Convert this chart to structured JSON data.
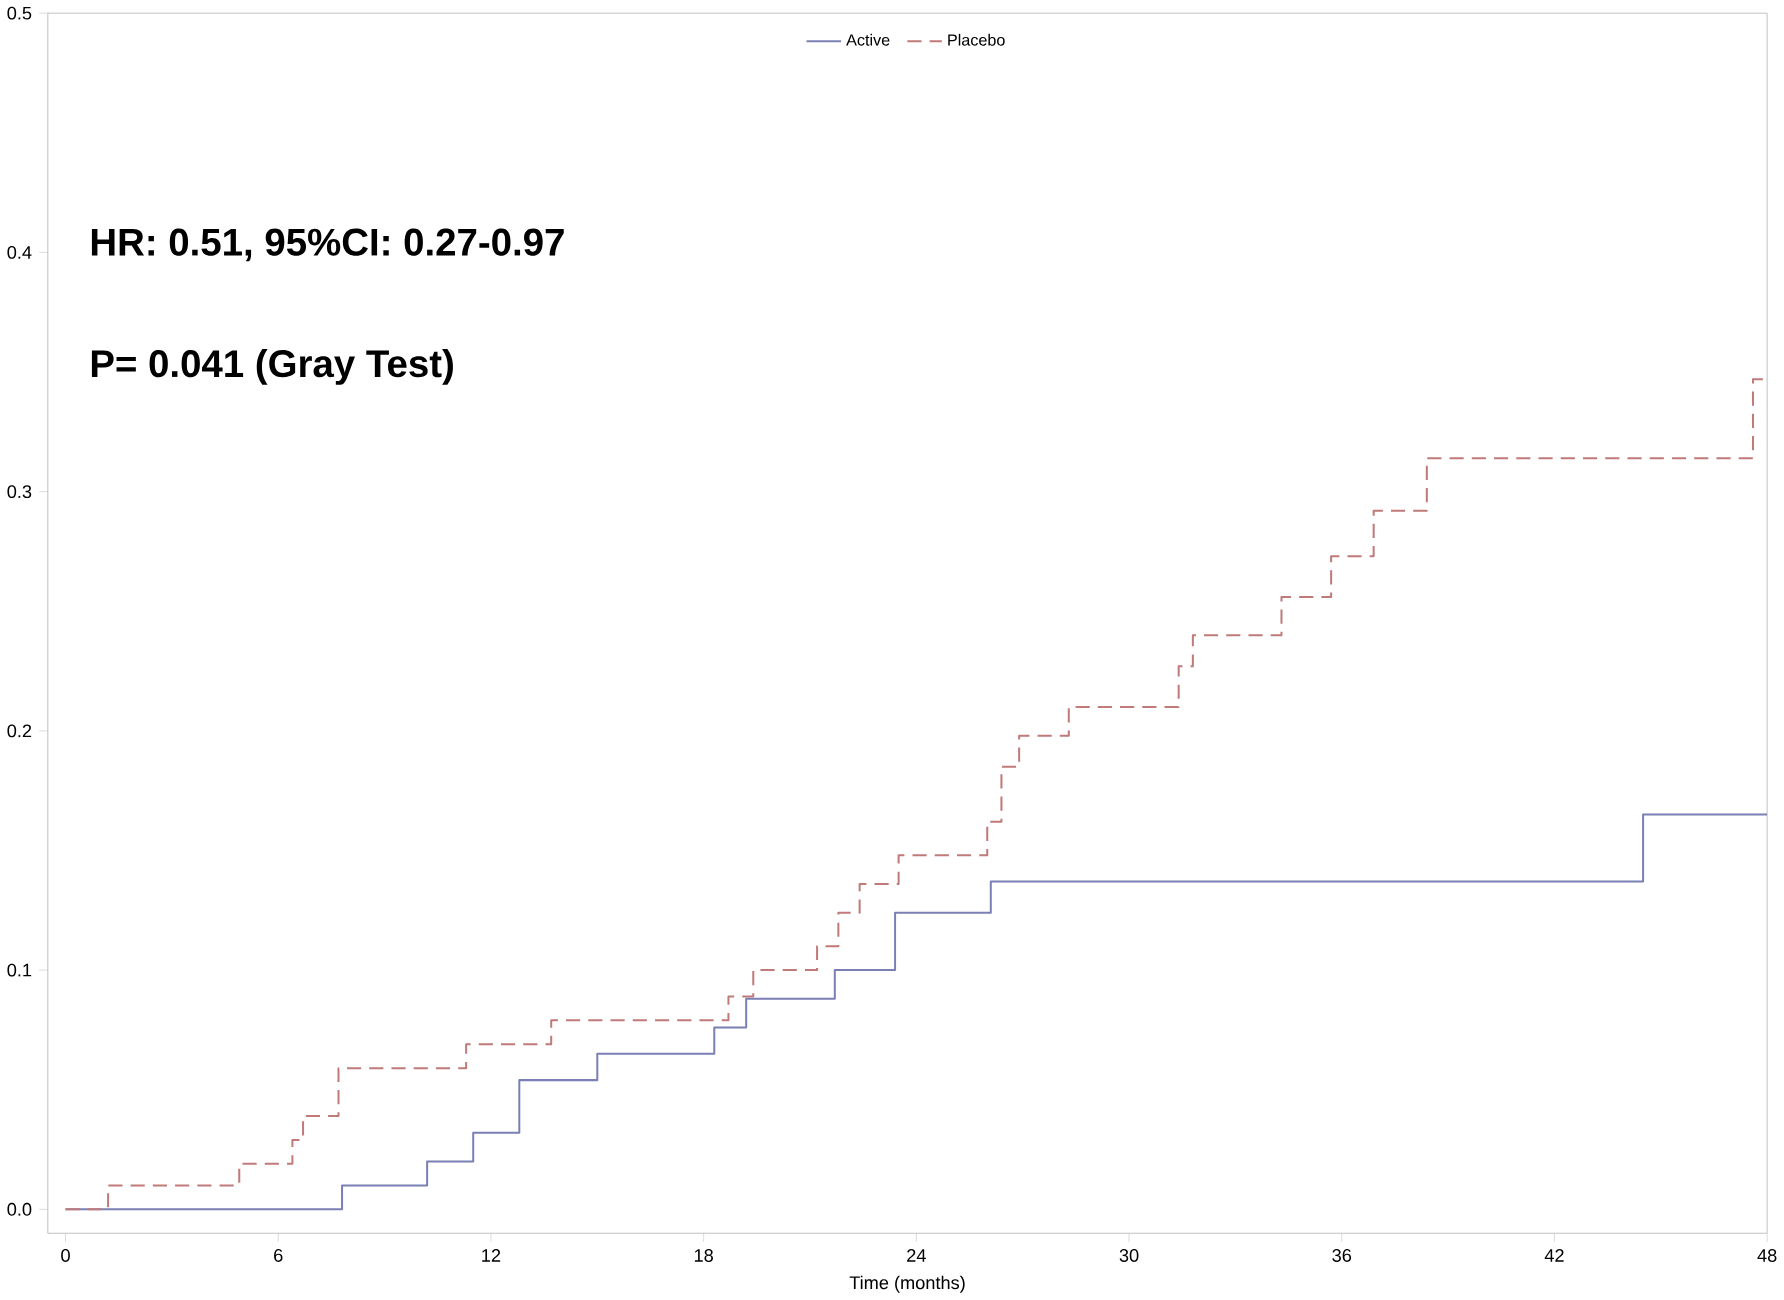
{
  "chart_data": {
    "type": "step",
    "xlabel": "Time (months)",
    "annotations": [
      "HR: 0.51, 95%CI: 0.27-0.97",
      "P= 0.041 (Gray Test)"
    ],
    "xlim": [
      -0.5,
      48
    ],
    "ylim": [
      -0.01,
      0.5
    ],
    "xticks": [
      0,
      6,
      12,
      18,
      24,
      30,
      36,
      42,
      48
    ],
    "yticks": [
      {
        "value": 0,
        "label": "0.0"
      },
      0.1,
      0.2,
      0.3,
      0.4,
      0.5
    ],
    "legend": "top",
    "grid": false,
    "series": [
      {
        "name": "Active",
        "color": "#7b80b4",
        "line_style": "solid",
        "x": [
          0,
          7.8,
          10.2,
          11.5,
          12.8,
          15,
          18.3,
          19.2,
          21.7,
          23.4,
          26.1,
          44.5,
          48
        ],
        "values": [
          0,
          0.01,
          0.02,
          0.032,
          0.054,
          0.065,
          0.076,
          0.088,
          0.1,
          0.124,
          0.137,
          0.165,
          0.165
        ]
      },
      {
        "name": "Placebo",
        "color": "#c07a7a",
        "line_style": "dashed",
        "x": [
          0,
          1.2,
          4.9,
          6.4,
          6.7,
          7.7,
          11.3,
          13.7,
          18.7,
          19.4,
          21.2,
          21.8,
          22.4,
          23.5,
          26.0,
          26.4,
          26.9,
          28.3,
          31.4,
          31.8,
          34.3,
          35.7,
          36.9,
          38.4,
          47.6,
          48
        ],
        "values": [
          0,
          0.01,
          0.019,
          0.029,
          0.039,
          0.059,
          0.069,
          0.079,
          0.089,
          0.1,
          0.11,
          0.124,
          0.136,
          0.148,
          0.162,
          0.185,
          0.198,
          0.21,
          0.227,
          0.24,
          0.256,
          0.273,
          0.292,
          0.314,
          0.347,
          0.347
        ]
      }
    ]
  }
}
